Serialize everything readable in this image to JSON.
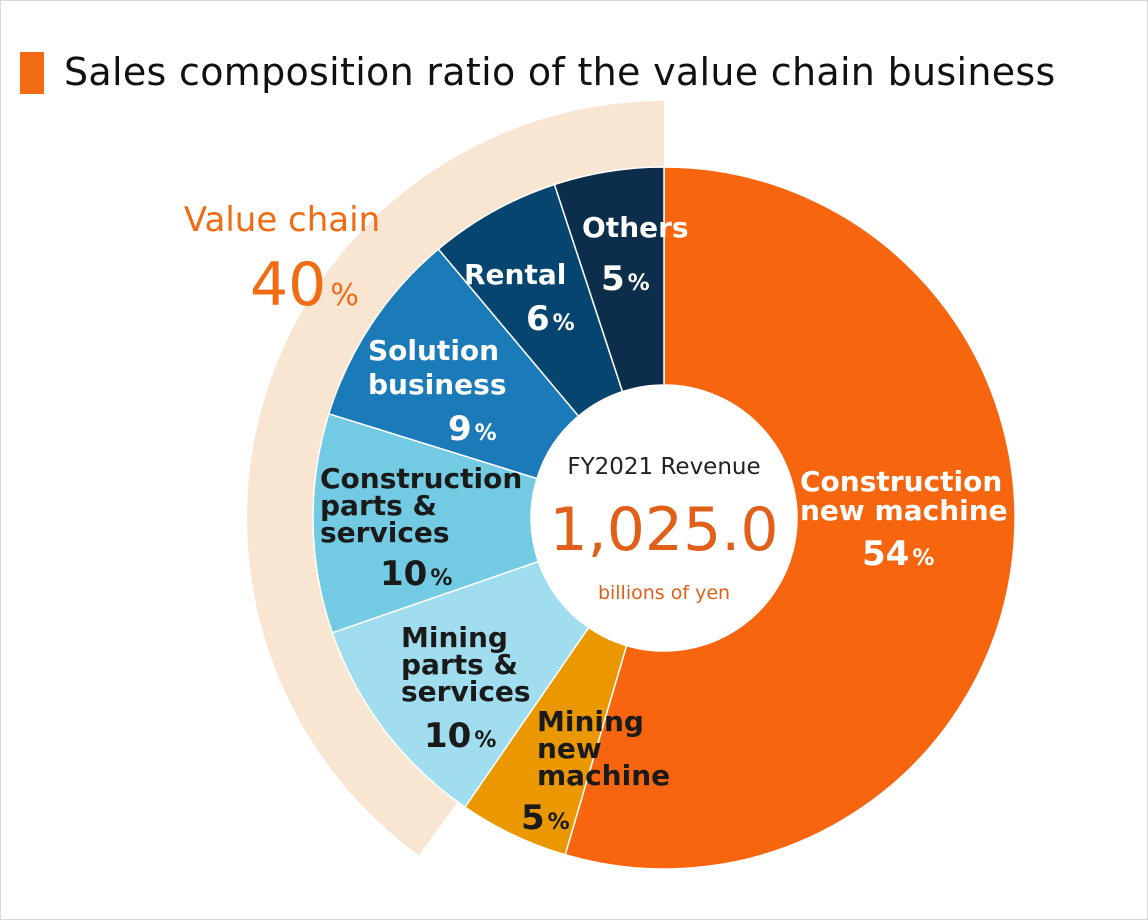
{
  "title": "Sales composition ratio of the value chain business",
  "center": {
    "heading": "FY2021 Revenue",
    "value": "1,025.0",
    "unit": "billions of yen"
  },
  "value_chain": {
    "label": "Value chain",
    "percent": 40,
    "percent_sign": "%",
    "color": "#f8e6d3",
    "label_color": "#f26b12"
  },
  "chart_data": {
    "type": "pie",
    "style": "donut",
    "title": "Sales composition ratio of the value chain business",
    "total": 1025.0,
    "total_unit": "billions of yen",
    "slices": [
      {
        "label": "Construction new machine",
        "value": 54,
        "color": "#f7650f",
        "text_color": "#ffffff"
      },
      {
        "label": "Mining new machine",
        "value": 5,
        "color": "#eb9800",
        "text_color": "#1a1a1a"
      },
      {
        "label": "Mining parts & services",
        "value": 10,
        "color": "#a0ddee",
        "text_color": "#1a1a1a"
      },
      {
        "label": "Construction parts & services",
        "value": 10,
        "color": "#72cbe2",
        "text_color": "#1a1a1a"
      },
      {
        "label": "Solution business",
        "value": 9,
        "color": "#1b7ab8",
        "text_color": "#ffffff"
      },
      {
        "label": "Rental",
        "value": 6,
        "color": "#05456f",
        "text_color": "#ffffff"
      },
      {
        "label": "Others",
        "value": 5,
        "color": "#0c2e4b",
        "text_color": "#ffffff"
      }
    ],
    "percent_sign": "%"
  }
}
